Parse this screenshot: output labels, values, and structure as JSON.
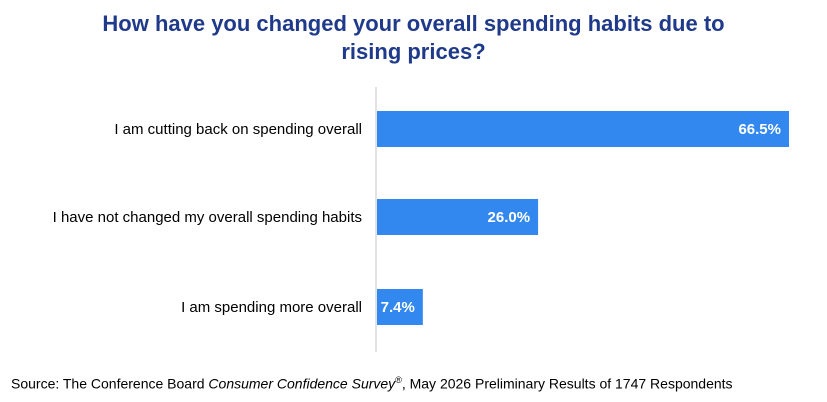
{
  "chart_data": {
    "type": "bar",
    "orientation": "horizontal",
    "title": "How have you changed your overall spending habits due to rising prices?",
    "title_lines": [
      "How have you changed your overall spending habits due to",
      "rising prices?"
    ],
    "categories": [
      "I am cutting back on spending overall",
      "I have not changed my overall spending habits",
      "I am spending more overall"
    ],
    "values": [
      66.5,
      26.0,
      7.4
    ],
    "value_labels": [
      "66.5%",
      "26.0%",
      "7.4%"
    ],
    "xlim": [
      0,
      66.5
    ],
    "bar_color": "#3388f0",
    "title_color": "#1f3a8a",
    "grid": false,
    "legend": "none"
  },
  "source": {
    "prefix": "Source: The Conference Board ",
    "survey_name": "Consumer Confidence Survey",
    "registered": "®",
    "suffix": ", May 2026 Preliminary Results of 1747 Respondents"
  }
}
